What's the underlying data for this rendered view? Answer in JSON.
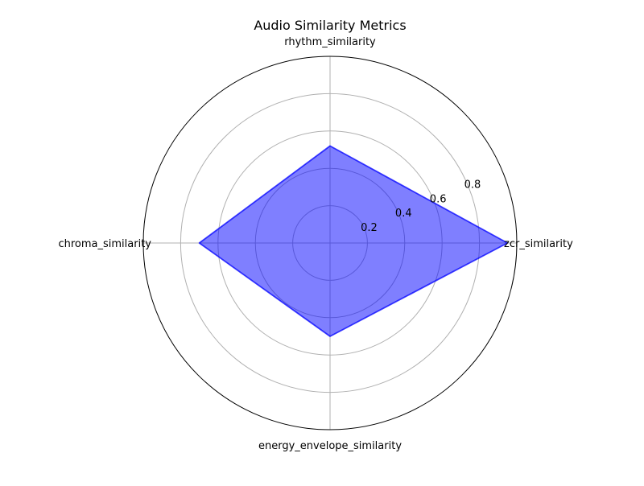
{
  "chart_data": {
    "type": "radar",
    "title": "Audio Similarity Metrics",
    "categories": [
      "zcr_similarity",
      "rhythm_similarity",
      "chroma_similarity",
      "energy_envelope_similarity"
    ],
    "series": [
      {
        "values": [
          0.95,
          0.52,
          0.7,
          0.5
        ]
      }
    ],
    "rlim": [
      0,
      1.0
    ],
    "radial_ticks": [
      0.2,
      0.4,
      0.6,
      0.8
    ],
    "radial_tick_labels": [
      "0.2",
      "0.4",
      "0.6",
      "0.8"
    ],
    "grid": true,
    "fill_color": "#0000ff",
    "line_color": "#0000ff",
    "grid_color": "#b0b0b0"
  }
}
